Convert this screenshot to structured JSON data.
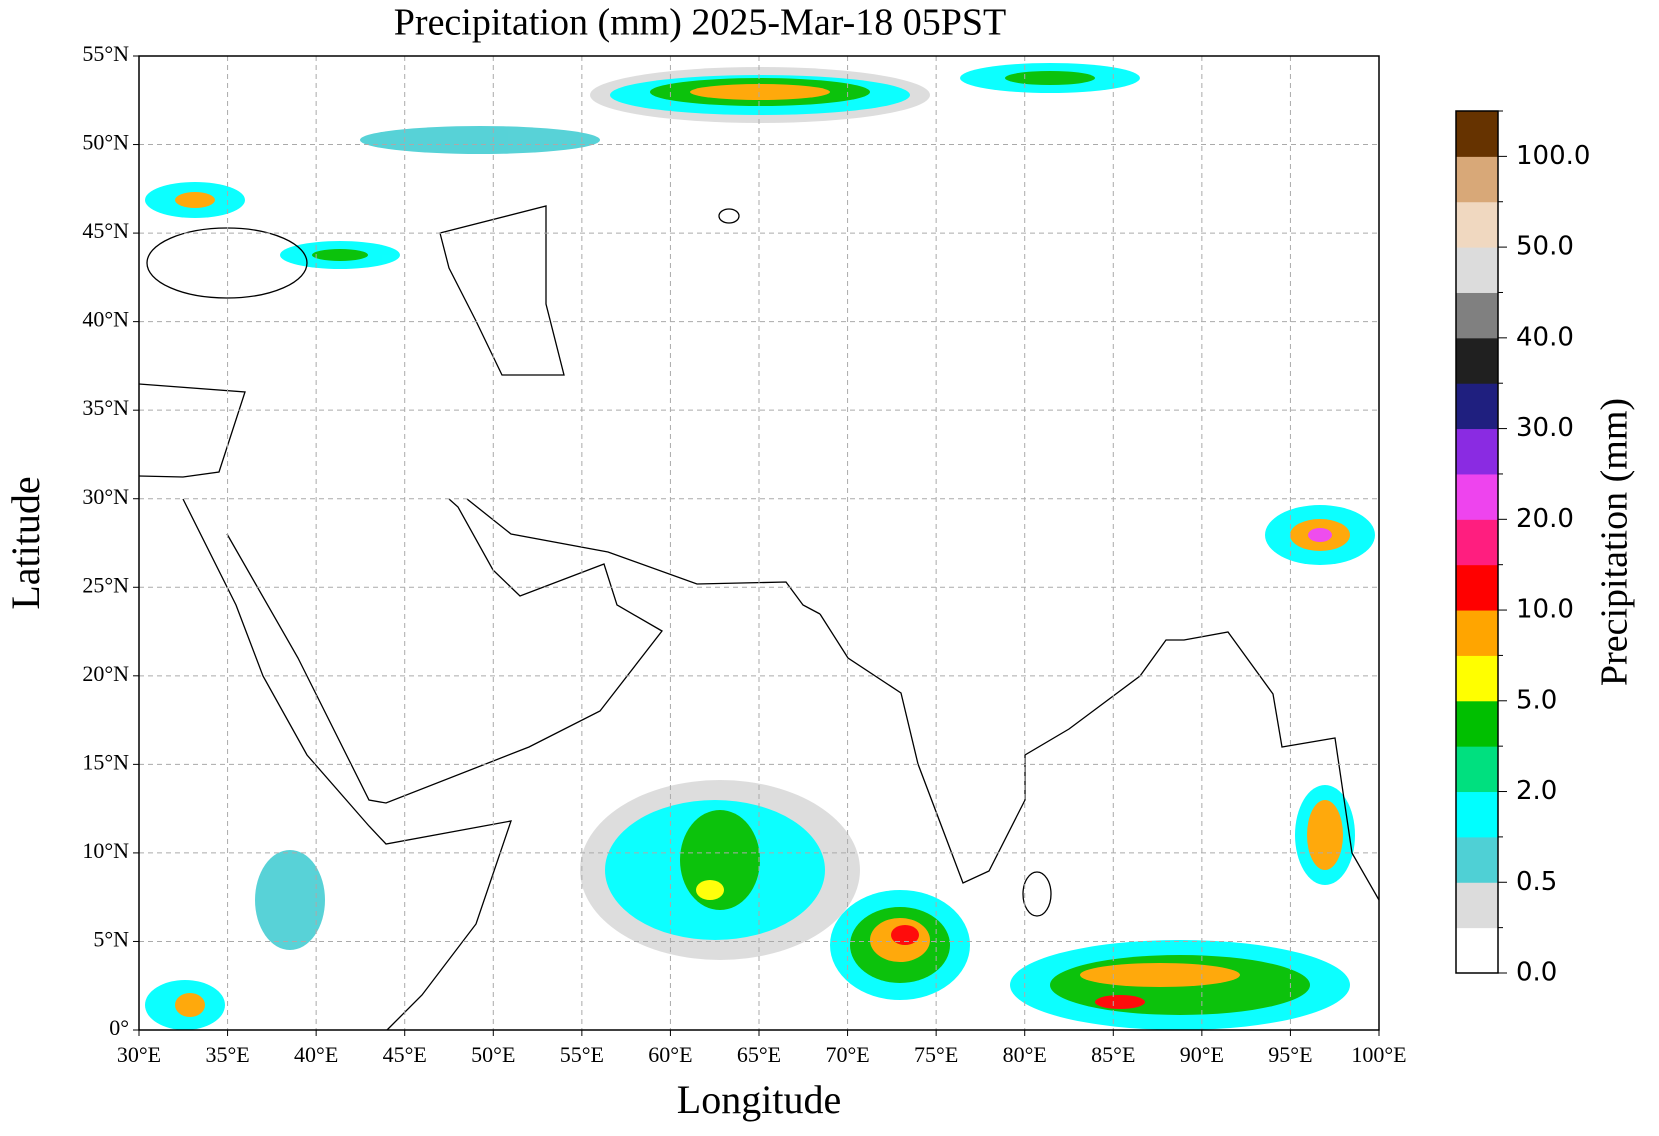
{
  "chart_data": {
    "type": "map",
    "title": "Precipitation (mm)  2025-Mar-18 05PST",
    "xlabel": "Longitude",
    "ylabel": "Latitude",
    "xlim": [
      30,
      100
    ],
    "ylim": [
      0,
      55
    ],
    "xticks": [
      {
        "value": 30,
        "label": "30°E"
      },
      {
        "value": 35,
        "label": "35°E"
      },
      {
        "value": 40,
        "label": "40°E"
      },
      {
        "value": 45,
        "label": "45°E"
      },
      {
        "value": 50,
        "label": "50°E"
      },
      {
        "value": 55,
        "label": "55°E"
      },
      {
        "value": 60,
        "label": "60°E"
      },
      {
        "value": 65,
        "label": "65°E"
      },
      {
        "value": 70,
        "label": "70°E"
      },
      {
        "value": 75,
        "label": "75°E"
      },
      {
        "value": 80,
        "label": "80°E"
      },
      {
        "value": 85,
        "label": "85°E"
      },
      {
        "value": 90,
        "label": "90°E"
      },
      {
        "value": 95,
        "label": "95°E"
      },
      {
        "value": 100,
        "label": "100°E"
      }
    ],
    "yticks": [
      {
        "value": 0,
        "label": "0°"
      },
      {
        "value": 5,
        "label": "5°N"
      },
      {
        "value": 10,
        "label": "10°N"
      },
      {
        "value": 15,
        "label": "15°N"
      },
      {
        "value": 20,
        "label": "20°N"
      },
      {
        "value": 25,
        "label": "25°N"
      },
      {
        "value": 30,
        "label": "30°N"
      },
      {
        "value": 35,
        "label": "35°N"
      },
      {
        "value": 40,
        "label": "40°N"
      },
      {
        "value": 45,
        "label": "45°N"
      },
      {
        "value": 50,
        "label": "50°N"
      },
      {
        "value": 55,
        "label": "55°N"
      }
    ],
    "grid": true,
    "colorbar": {
      "label": "Precipitation (mm)",
      "colors": [
        "#ffffff",
        "#dcdcdc",
        "#4fd0d5",
        "#00ffff",
        "#00e07f",
        "#00bf00",
        "#ffff00",
        "#ffa500",
        "#ff0000",
        "#ff1e7f",
        "#ee44ee",
        "#8a2be2",
        "#1f1f7f",
        "#202020",
        "#808080",
        "#dcdcdc",
        "#f0d8c0",
        "#d8a878",
        "#663300"
      ],
      "ticks": [
        {
          "value": 0,
          "label": "0.0"
        },
        {
          "value": 0.5,
          "label": "0.5"
        },
        {
          "value": 2,
          "label": "2.0"
        },
        {
          "value": 5,
          "label": "5.0"
        },
        {
          "value": 10,
          "label": "10.0"
        },
        {
          "value": 20,
          "label": "20.0"
        },
        {
          "value": 30,
          "label": "30.0"
        },
        {
          "value": 40,
          "label": "40.0"
        },
        {
          "value": 50,
          "label": "50.0"
        },
        {
          "value": 100,
          "label": "100.0"
        }
      ]
    }
  }
}
